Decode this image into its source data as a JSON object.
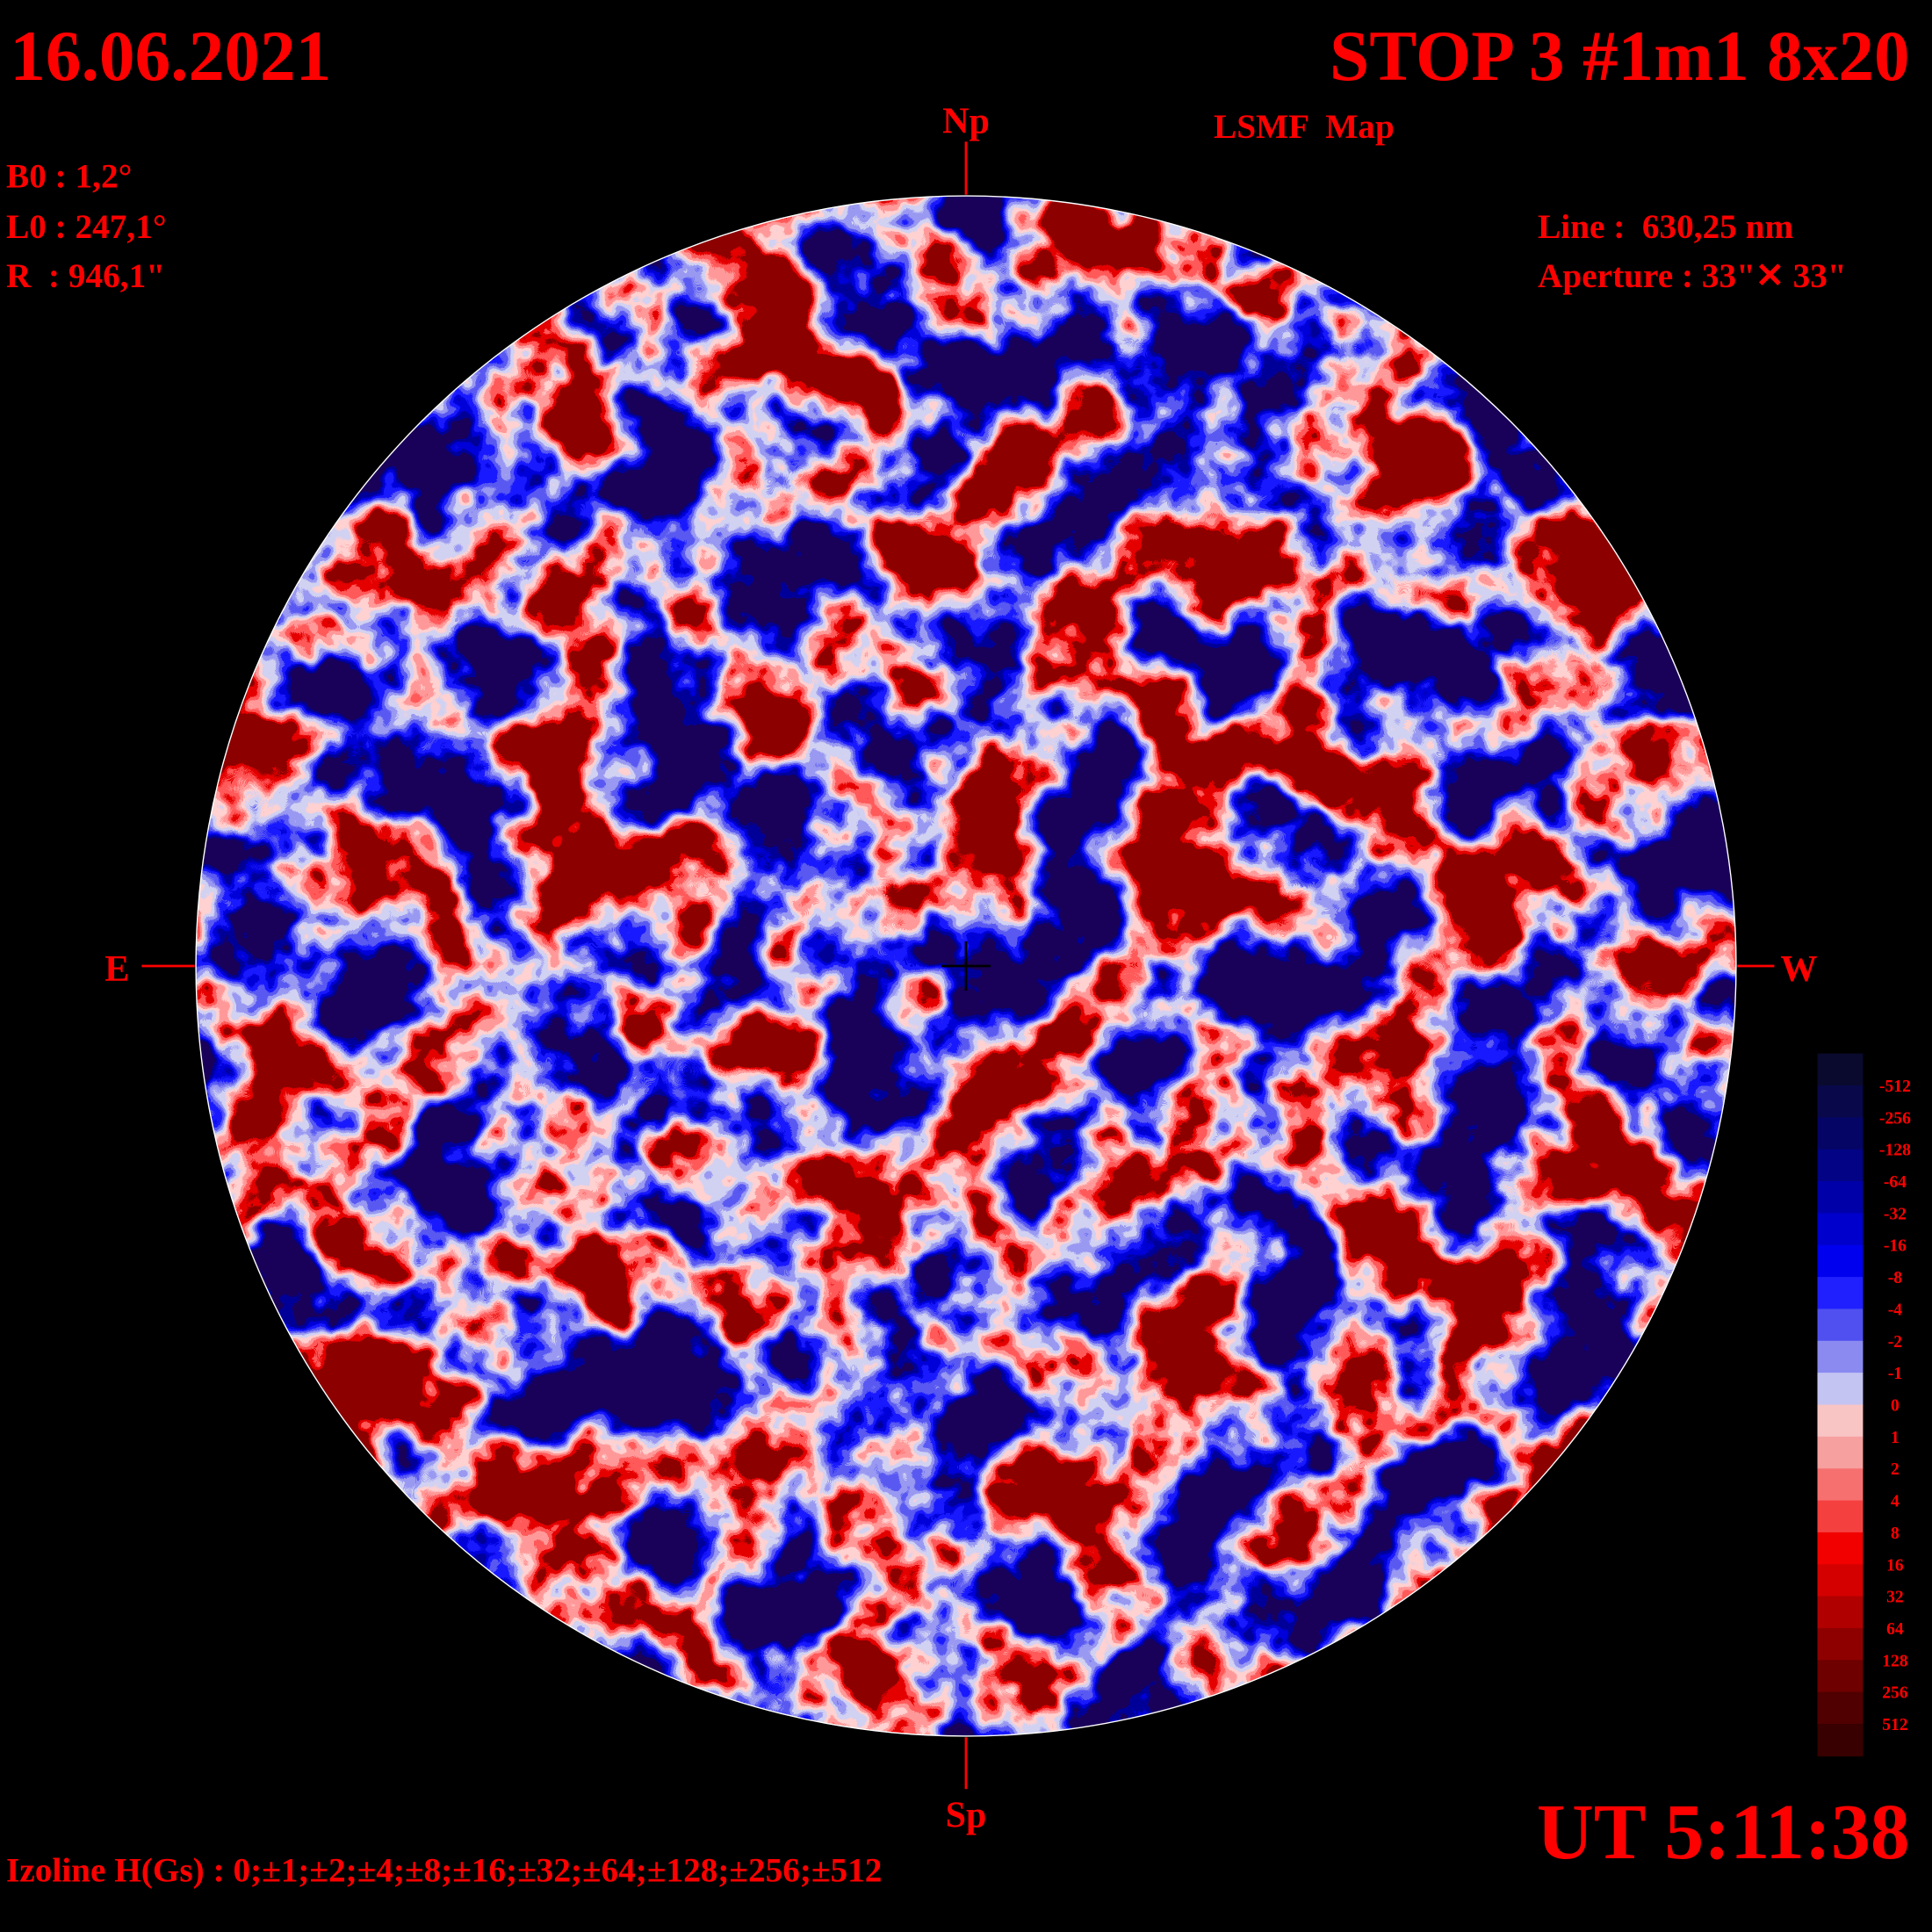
{
  "header": {
    "date": "16.06.2021",
    "title": "STOP 3 #1m1 8x20",
    "subtitle": "LSMF  Map",
    "time": "UT 5:11:38"
  },
  "params_left": [
    "B0 : 1,2°",
    "L0 : 247,1°",
    "R  : 946,1\""
  ],
  "params_right": [
    "Line :  630,25 nm",
    "Aperture : 33\"✕ 33\""
  ],
  "directions": {
    "north": "Np",
    "south": "Sp",
    "east": "E",
    "west": "W"
  },
  "footer": "Izoline H(Gs) : 0;±1;±2;±4;±8;±16;±32;±64;±128;±256;±512",
  "colorbar": {
    "labels": [
      "-512",
      "-256",
      "-128",
      "-64",
      "-32",
      "-16",
      "-8",
      "-4",
      "-2",
      "-1",
      "0",
      "1",
      "2",
      "4",
      "8",
      "16",
      "32",
      "64",
      "128",
      "256",
      "512"
    ],
    "colors": [
      "#0a0a2e",
      "#08084a",
      "#050566",
      "#030385",
      "#0000a8",
      "#0000cc",
      "#0000ee",
      "#2020ff",
      "#5050f0",
      "#8a8af0",
      "#c4c4f2",
      "#f8c4c4",
      "#f7a0a0",
      "#f77070",
      "#f54040",
      "#f20000",
      "#d40000",
      "#b00000",
      "#8e0000",
      "#6e0000",
      "#500000",
      "#380000"
    ]
  }
}
